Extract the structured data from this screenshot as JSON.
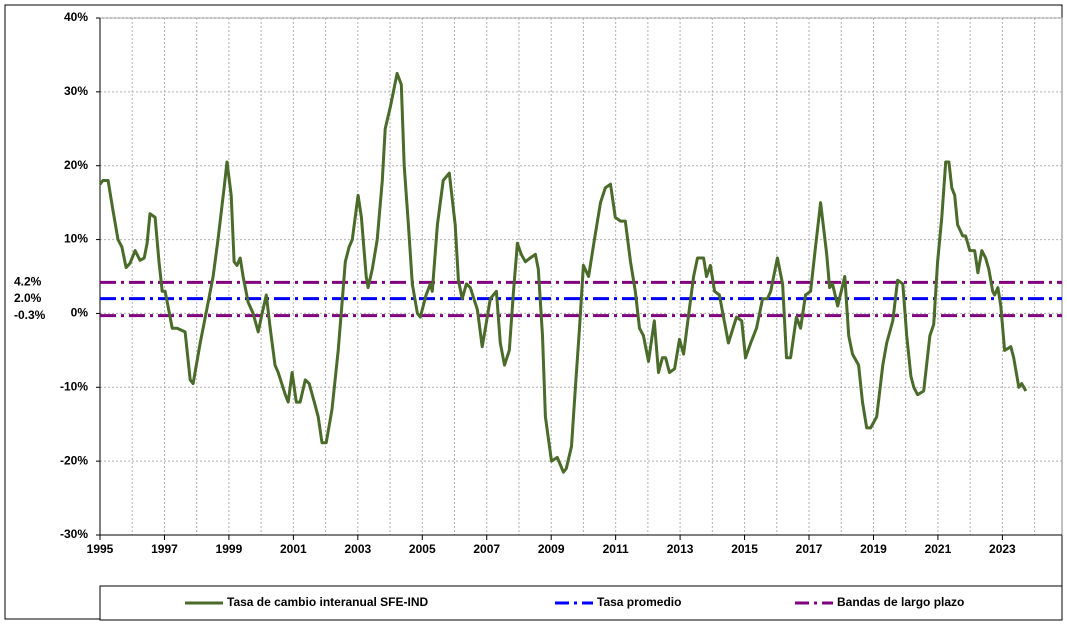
{
  "chart_data": {
    "type": "line",
    "xlim": [
      1995,
      2024.85
    ],
    "xticks": [
      1995,
      1997,
      1999,
      2001,
      2003,
      2005,
      2007,
      2009,
      2011,
      2013,
      2015,
      2017,
      2019,
      2021,
      2023
    ],
    "xgrid": [
      1996,
      1997,
      1998,
      1999,
      2000,
      2001,
      2002,
      2003,
      2004,
      2005,
      2006,
      2007,
      2008,
      2009,
      2010,
      2011,
      2012,
      2013,
      2014,
      2015,
      2016,
      2017,
      2018,
      2019,
      2020,
      2021,
      2022,
      2023,
      2024
    ],
    "ylim": [
      -30,
      40
    ],
    "yticks": [
      {
        "value": -30,
        "label": "-30%"
      },
      {
        "value": -20,
        "label": "-20%"
      },
      {
        "value": -10,
        "label": "-10%"
      },
      {
        "value": 0,
        "label": "0%"
      },
      {
        "value": 10,
        "label": "10%"
      },
      {
        "value": 20,
        "label": "20%"
      },
      {
        "value": 30,
        "label": "30%"
      },
      {
        "value": 40,
        "label": "40%"
      }
    ],
    "grid": true,
    "series": [
      {
        "name": "Tasa de cambio interanual SFE-IND",
        "color": "#4a6b2a",
        "x": [
          1995.0,
          1995.09,
          1995.25,
          1995.4,
          1995.56,
          1995.68,
          1995.81,
          1995.93,
          1996.09,
          1996.24,
          1996.37,
          1996.46,
          1996.55,
          1996.71,
          1996.83,
          1996.93,
          1997.02,
          1997.11,
          1997.24,
          1997.39,
          1997.64,
          1997.8,
          1997.89,
          1998.11,
          1998.29,
          1998.51,
          1998.66,
          1998.85,
          1998.94,
          1999.07,
          1999.16,
          1999.25,
          1999.35,
          1999.44,
          1999.6,
          1999.75,
          1999.91,
          2000.03,
          2000.16,
          2000.28,
          2000.43,
          2000.53,
          2000.75,
          2000.84,
          2000.96,
          2001.09,
          2001.21,
          2001.37,
          2001.49,
          2001.65,
          2001.77,
          2001.89,
          2002.02,
          2002.2,
          2002.39,
          2002.52,
          2002.61,
          2002.73,
          2002.83,
          2003.01,
          2003.11,
          2003.26,
          2003.32,
          2003.45,
          2003.6,
          2003.76,
          2003.85,
          2004.01,
          2004.22,
          2004.35,
          2004.44,
          2004.57,
          2004.69,
          2004.85,
          2004.94,
          2005.12,
          2005.25,
          2005.31,
          2005.47,
          2005.65,
          2005.84,
          2006.02,
          2006.12,
          2006.24,
          2006.37,
          2006.49,
          2006.71,
          2006.86,
          2006.96,
          2007.11,
          2007.3,
          2007.42,
          2007.55,
          2007.7,
          2007.83,
          2007.95,
          2008.07,
          2008.2,
          2008.35,
          2008.51,
          2008.6,
          2008.73,
          2008.82,
          2009.01,
          2009.19,
          2009.38,
          2009.47,
          2009.63,
          2009.75,
          2009.88,
          2010.0,
          2010.16,
          2010.34,
          2010.53,
          2010.68,
          2010.84,
          2010.99,
          2011.15,
          2011.3,
          2011.46,
          2011.61,
          2011.74,
          2011.86,
          2012.02,
          2012.2,
          2012.33,
          2012.45,
          2012.55,
          2012.67,
          2012.83,
          2012.98,
          2013.11,
          2013.27,
          2013.42,
          2013.54,
          2013.73,
          2013.82,
          2013.94,
          2014.07,
          2014.22,
          2014.5,
          2014.75,
          2014.91,
          2015.03,
          2015.19,
          2015.37,
          2015.56,
          2015.71,
          2015.81,
          2016.02,
          2016.18,
          2016.3,
          2016.43,
          2016.61,
          2016.74,
          2016.89,
          2017.05,
          2017.2,
          2017.36,
          2017.55,
          2017.64,
          2017.73,
          2017.89,
          2018.11,
          2018.23,
          2018.35,
          2018.54,
          2018.66,
          2018.79,
          2018.91,
          2019.1,
          2019.29,
          2019.41,
          2019.6,
          2019.75,
          2019.91,
          2020.03,
          2020.16,
          2020.25,
          2020.37,
          2020.56,
          2020.75,
          2020.87,
          2020.99,
          2021.12,
          2021.24,
          2021.34,
          2021.43,
          2021.52,
          2021.61,
          2021.77,
          2021.86,
          2021.99,
          2022.14,
          2022.24,
          2022.36,
          2022.48,
          2022.58,
          2022.7,
          2022.76,
          2022.86,
          2022.95,
          2023.07,
          2023.26,
          2023.35,
          2023.51,
          2023.6,
          2023.73
        ],
        "values": [
          17.5,
          18,
          18,
          14,
          10,
          9,
          6.2,
          6.8,
          8.5,
          7.2,
          7.5,
          9.5,
          13.5,
          13,
          7,
          3,
          3,
          1,
          -2,
          -2,
          -2.5,
          -9,
          -9.5,
          -4,
          0,
          5,
          10,
          17,
          20.5,
          16,
          7,
          6.5,
          7.5,
          5,
          1.5,
          0,
          -2.5,
          0,
          2.5,
          -2,
          -7,
          -8,
          -11,
          -12,
          -8,
          -12,
          -12,
          -9,
          -9.5,
          -12,
          -14,
          -17.5,
          -17.5,
          -13,
          -5,
          2,
          7,
          9,
          10,
          16,
          13,
          5,
          3.5,
          6,
          10,
          18,
          25,
          28,
          32.5,
          31,
          20,
          12,
          4,
          0,
          -0.5,
          2.5,
          4,
          3,
          12,
          18,
          19,
          12,
          4.5,
          2,
          4,
          3.5,
          0.5,
          -4.5,
          -2,
          2,
          3,
          -4,
          -7,
          -5,
          3,
          9.5,
          8,
          7,
          7.5,
          8,
          6,
          -3,
          -14,
          -20,
          -19.5,
          -21.5,
          -21,
          -18,
          -10,
          -2,
          6.5,
          5,
          10,
          15,
          17,
          17.5,
          13,
          12.5,
          12.5,
          7,
          3,
          -2,
          -3,
          -6.5,
          -1,
          -8,
          -6,
          -6,
          -8,
          -7.5,
          -3.5,
          -5.5,
          0,
          5,
          7.5,
          7.5,
          5,
          6.5,
          3,
          2.5,
          -4,
          -0.5,
          -1,
          -6,
          -4,
          -2,
          2,
          2,
          3,
          7.5,
          4,
          -6,
          -6,
          -0.5,
          -2,
          2.5,
          3,
          9,
          15,
          8,
          3.5,
          4,
          1,
          5,
          -3,
          -5.5,
          -7,
          -12,
          -15.5,
          -15.5,
          -14,
          -7,
          -4,
          -1,
          4.5,
          4,
          -3,
          -8.5,
          -10,
          -11,
          -10.5,
          -3,
          -1.5,
          7,
          13,
          20.5,
          20.5,
          17,
          16,
          12,
          10.5,
          10.5,
          8.5,
          8.5,
          5.5,
          8.5,
          7.5,
          6,
          3,
          2.5,
          3.5,
          1,
          -5,
          -4.5,
          -6,
          -10,
          -9.5,
          -10.5
        ]
      }
    ],
    "hlines": [
      {
        "name": "Tasa promedio",
        "color": "#0000ff",
        "values": [
          2.0
        ],
        "value_labels": [
          "2.0%"
        ]
      },
      {
        "name": "Bandas de largo plazo",
        "color": "#800080",
        "values": [
          4.2,
          -0.3
        ],
        "value_labels": [
          "4.2%",
          "-0.3%"
        ]
      }
    ]
  }
}
